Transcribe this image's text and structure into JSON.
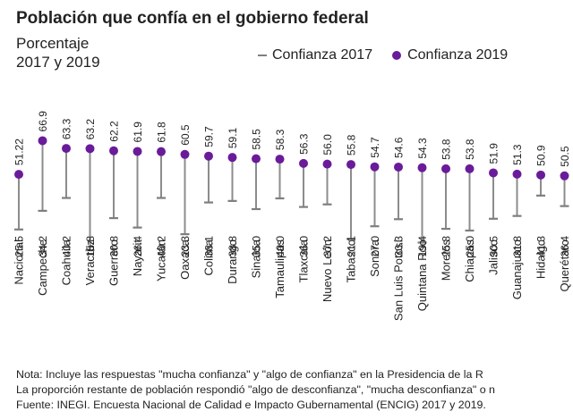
{
  "header": {
    "title": "Población que confía en el gobierno federal",
    "subtitle_line1": "Porcentaje",
    "subtitle_line2": "2017 y 2019"
  },
  "legend": {
    "item_2017": "Confianza 2017",
    "item_2019": "Confianza 2019"
  },
  "colors": {
    "series_2017": "#7f7f7f",
    "series_2019": "#6a1b9a",
    "connector": "#8c8c8c"
  },
  "chart_data": {
    "type": "dumbbell",
    "legend_placement": "top-right",
    "grid": false,
    "ylim": [
      0,
      100
    ],
    "categories": [
      "Nacional",
      "Campeche",
      "Coahuila",
      "Veracruz",
      "Guerrero",
      "Nayarit",
      "Yucatán",
      "Oaxaca",
      "Colima",
      "Durango",
      "Sinaloa",
      "Tamaulipas",
      "Tlaxcala",
      "Nuevo León",
      "Tabasco",
      "Sonora",
      "San Luis Potosí",
      "Quintana Roo",
      "Morelos",
      "Chiapas",
      "Jalisco",
      "Guanajuato",
      "Hidalgo",
      "Querétaro"
    ],
    "series": [
      {
        "name": "Confianza 2017",
        "values": [
          25.5,
          34.2,
          40.2,
          15.8,
          30.8,
          26.4,
          40.2,
          23.3,
          38.1,
          38.8,
          35.0,
          40.0,
          36.0,
          37.2,
          21.1,
          27.0,
          30.3,
          19.4,
          25.8,
          25.0,
          30.5,
          31.8,
          41.3,
          36.4
        ]
      },
      {
        "name": "Confianza 2019",
        "values": [
          51.2,
          66.9,
          63.3,
          63.2,
          62.2,
          61.9,
          61.8,
          60.5,
          59.7,
          59.1,
          58.5,
          58.3,
          56.3,
          56.0,
          55.8,
          54.7,
          54.6,
          54.3,
          53.8,
          53.8,
          51.9,
          51.3,
          50.9,
          50.5
        ]
      }
    ],
    "labels_2017": [
      "25.5",
      "34.2",
      "40.2",
      "15.8",
      "30.8",
      "26.4",
      "40.2",
      "23.3",
      "38.1",
      "38.8",
      "35.0",
      "40.0",
      "36.0",
      "37.2",
      "21.1",
      "27.0",
      "30.3",
      "19.4",
      "25.8",
      "25.0",
      "30.5",
      "31.8",
      "41.3",
      "36.4"
    ],
    "labels_2019": [
      "51.22",
      "66.9",
      "63.3",
      "63.2",
      "62.2",
      "61.9",
      "61.8",
      "60.5",
      "59.7",
      "59.1",
      "58.5",
      "58.3",
      "56.3",
      "56.0",
      "55.8",
      "54.7",
      "54.6",
      "54.3",
      "53.8",
      "53.8",
      "51.9",
      "51.3",
      "50.9",
      "50.5"
    ]
  },
  "note": {
    "line1": "Nota: Incluye las respuestas \"mucha confianza\" y \"algo de confianza\" en la Presidencia de la R",
    "line2": "La proporción restante de población respondió \"algo de desconfianza\", \"mucha desconfianza\" o n",
    "line3": "Fuente: INEGI. Encuesta Nacional de Calidad e Impacto Gubernamental (ENCIG) 2017 y 2019."
  }
}
